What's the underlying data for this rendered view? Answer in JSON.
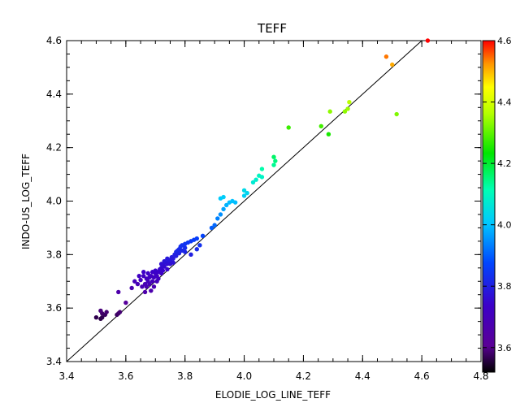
{
  "chart_data": {
    "type": "scatter",
    "title": "TEFF",
    "xlabel": "ELODIE_LOG_LINE_TEFF",
    "ylabel": "INDO-US_LOG_TEFF",
    "xlim": [
      3.4,
      4.8
    ],
    "ylim": [
      3.4,
      4.6
    ],
    "x_ticks": [
      "3.4",
      "3.6",
      "3.8",
      "4.0",
      "4.2",
      "4.4",
      "4.6",
      "4.8"
    ],
    "y_ticks": [
      "3.4",
      "3.6",
      "3.8",
      "4.0",
      "4.2",
      "4.4",
      "4.6"
    ],
    "reference_line": "y = x",
    "grid": false,
    "colorbar": {
      "range": [
        3.52,
        4.6
      ],
      "ticks": [
        "3.6",
        "3.8",
        "4.0",
        "4.2",
        "4.4",
        "4.6"
      ],
      "colormap": "rainbow"
    },
    "points": [
      [
        3.5,
        3.565
      ],
      [
        3.515,
        3.56
      ],
      [
        3.52,
        3.565
      ],
      [
        3.52,
        3.58
      ],
      [
        3.53,
        3.575
      ],
      [
        3.535,
        3.585
      ],
      [
        3.515,
        3.59
      ],
      [
        3.57,
        3.575
      ],
      [
        3.575,
        3.58
      ],
      [
        3.58,
        3.585
      ],
      [
        3.575,
        3.66
      ],
      [
        3.6,
        3.62
      ],
      [
        3.62,
        3.675
      ],
      [
        3.63,
        3.7
      ],
      [
        3.64,
        3.69
      ],
      [
        3.645,
        3.72
      ],
      [
        3.65,
        3.705
      ],
      [
        3.655,
        3.68
      ],
      [
        3.66,
        3.72
      ],
      [
        3.66,
        3.735
      ],
      [
        3.665,
        3.69
      ],
      [
        3.67,
        3.71
      ],
      [
        3.675,
        3.7
      ],
      [
        3.675,
        3.73
      ],
      [
        3.68,
        3.715
      ],
      [
        3.68,
        3.69
      ],
      [
        3.685,
        3.72
      ],
      [
        3.69,
        3.7
      ],
      [
        3.69,
        3.735
      ],
      [
        3.695,
        3.715
      ],
      [
        3.7,
        3.73
      ],
      [
        3.7,
        3.74
      ],
      [
        3.705,
        3.72
      ],
      [
        3.71,
        3.735
      ],
      [
        3.715,
        3.745
      ],
      [
        3.72,
        3.75
      ],
      [
        3.72,
        3.73
      ],
      [
        3.725,
        3.76
      ],
      [
        3.73,
        3.755
      ],
      [
        3.735,
        3.77
      ],
      [
        3.74,
        3.765
      ],
      [
        3.745,
        3.775
      ],
      [
        3.75,
        3.78
      ],
      [
        3.755,
        3.79
      ],
      [
        3.76,
        3.785
      ],
      [
        3.765,
        3.8
      ],
      [
        3.77,
        3.81
      ],
      [
        3.775,
        3.815
      ],
      [
        3.78,
        3.82
      ],
      [
        3.785,
        3.83
      ],
      [
        3.79,
        3.835
      ],
      [
        3.8,
        3.84
      ],
      [
        3.81,
        3.845
      ],
      [
        3.82,
        3.85
      ],
      [
        3.83,
        3.855
      ],
      [
        3.84,
        3.86
      ],
      [
        3.8,
        3.81
      ],
      [
        3.82,
        3.8
      ],
      [
        3.84,
        3.82
      ],
      [
        3.85,
        3.835
      ],
      [
        3.86,
        3.87
      ],
      [
        3.665,
        3.66
      ],
      [
        3.67,
        3.68
      ],
      [
        3.685,
        3.665
      ],
      [
        3.695,
        3.68
      ],
      [
        3.705,
        3.7
      ],
      [
        3.71,
        3.71
      ],
      [
        3.725,
        3.74
      ],
      [
        3.74,
        3.745
      ],
      [
        3.75,
        3.765
      ],
      [
        3.76,
        3.77
      ],
      [
        3.74,
        3.785
      ],
      [
        3.73,
        3.775
      ],
      [
        3.72,
        3.765
      ],
      [
        3.77,
        3.795
      ],
      [
        3.78,
        3.805
      ],
      [
        3.79,
        3.815
      ],
      [
        3.8,
        3.825
      ],
      [
        3.89,
        3.9
      ],
      [
        3.9,
        3.91
      ],
      [
        3.91,
        3.935
      ],
      [
        3.92,
        3.95
      ],
      [
        3.93,
        3.97
      ],
      [
        3.94,
        3.985
      ],
      [
        3.95,
        3.995
      ],
      [
        3.96,
        4.0
      ],
      [
        3.97,
        3.995
      ],
      [
        3.92,
        4.01
      ],
      [
        3.93,
        4.015
      ],
      [
        4.0,
        4.02
      ],
      [
        4.0,
        4.04
      ],
      [
        4.01,
        4.03
      ],
      [
        4.03,
        4.07
      ],
      [
        4.04,
        4.08
      ],
      [
        4.05,
        4.095
      ],
      [
        4.06,
        4.09
      ],
      [
        4.06,
        4.12
      ],
      [
        4.1,
        4.135
      ],
      [
        4.105,
        4.15
      ],
      [
        4.1,
        4.165
      ],
      [
        4.15,
        4.275
      ],
      [
        4.26,
        4.28
      ],
      [
        4.285,
        4.25
      ],
      [
        4.29,
        4.335
      ],
      [
        4.34,
        4.335
      ],
      [
        4.35,
        4.345
      ],
      [
        4.355,
        4.37
      ],
      [
        4.48,
        4.54
      ],
      [
        4.5,
        4.51
      ],
      [
        4.515,
        4.325
      ],
      [
        4.62,
        4.6
      ]
    ]
  }
}
